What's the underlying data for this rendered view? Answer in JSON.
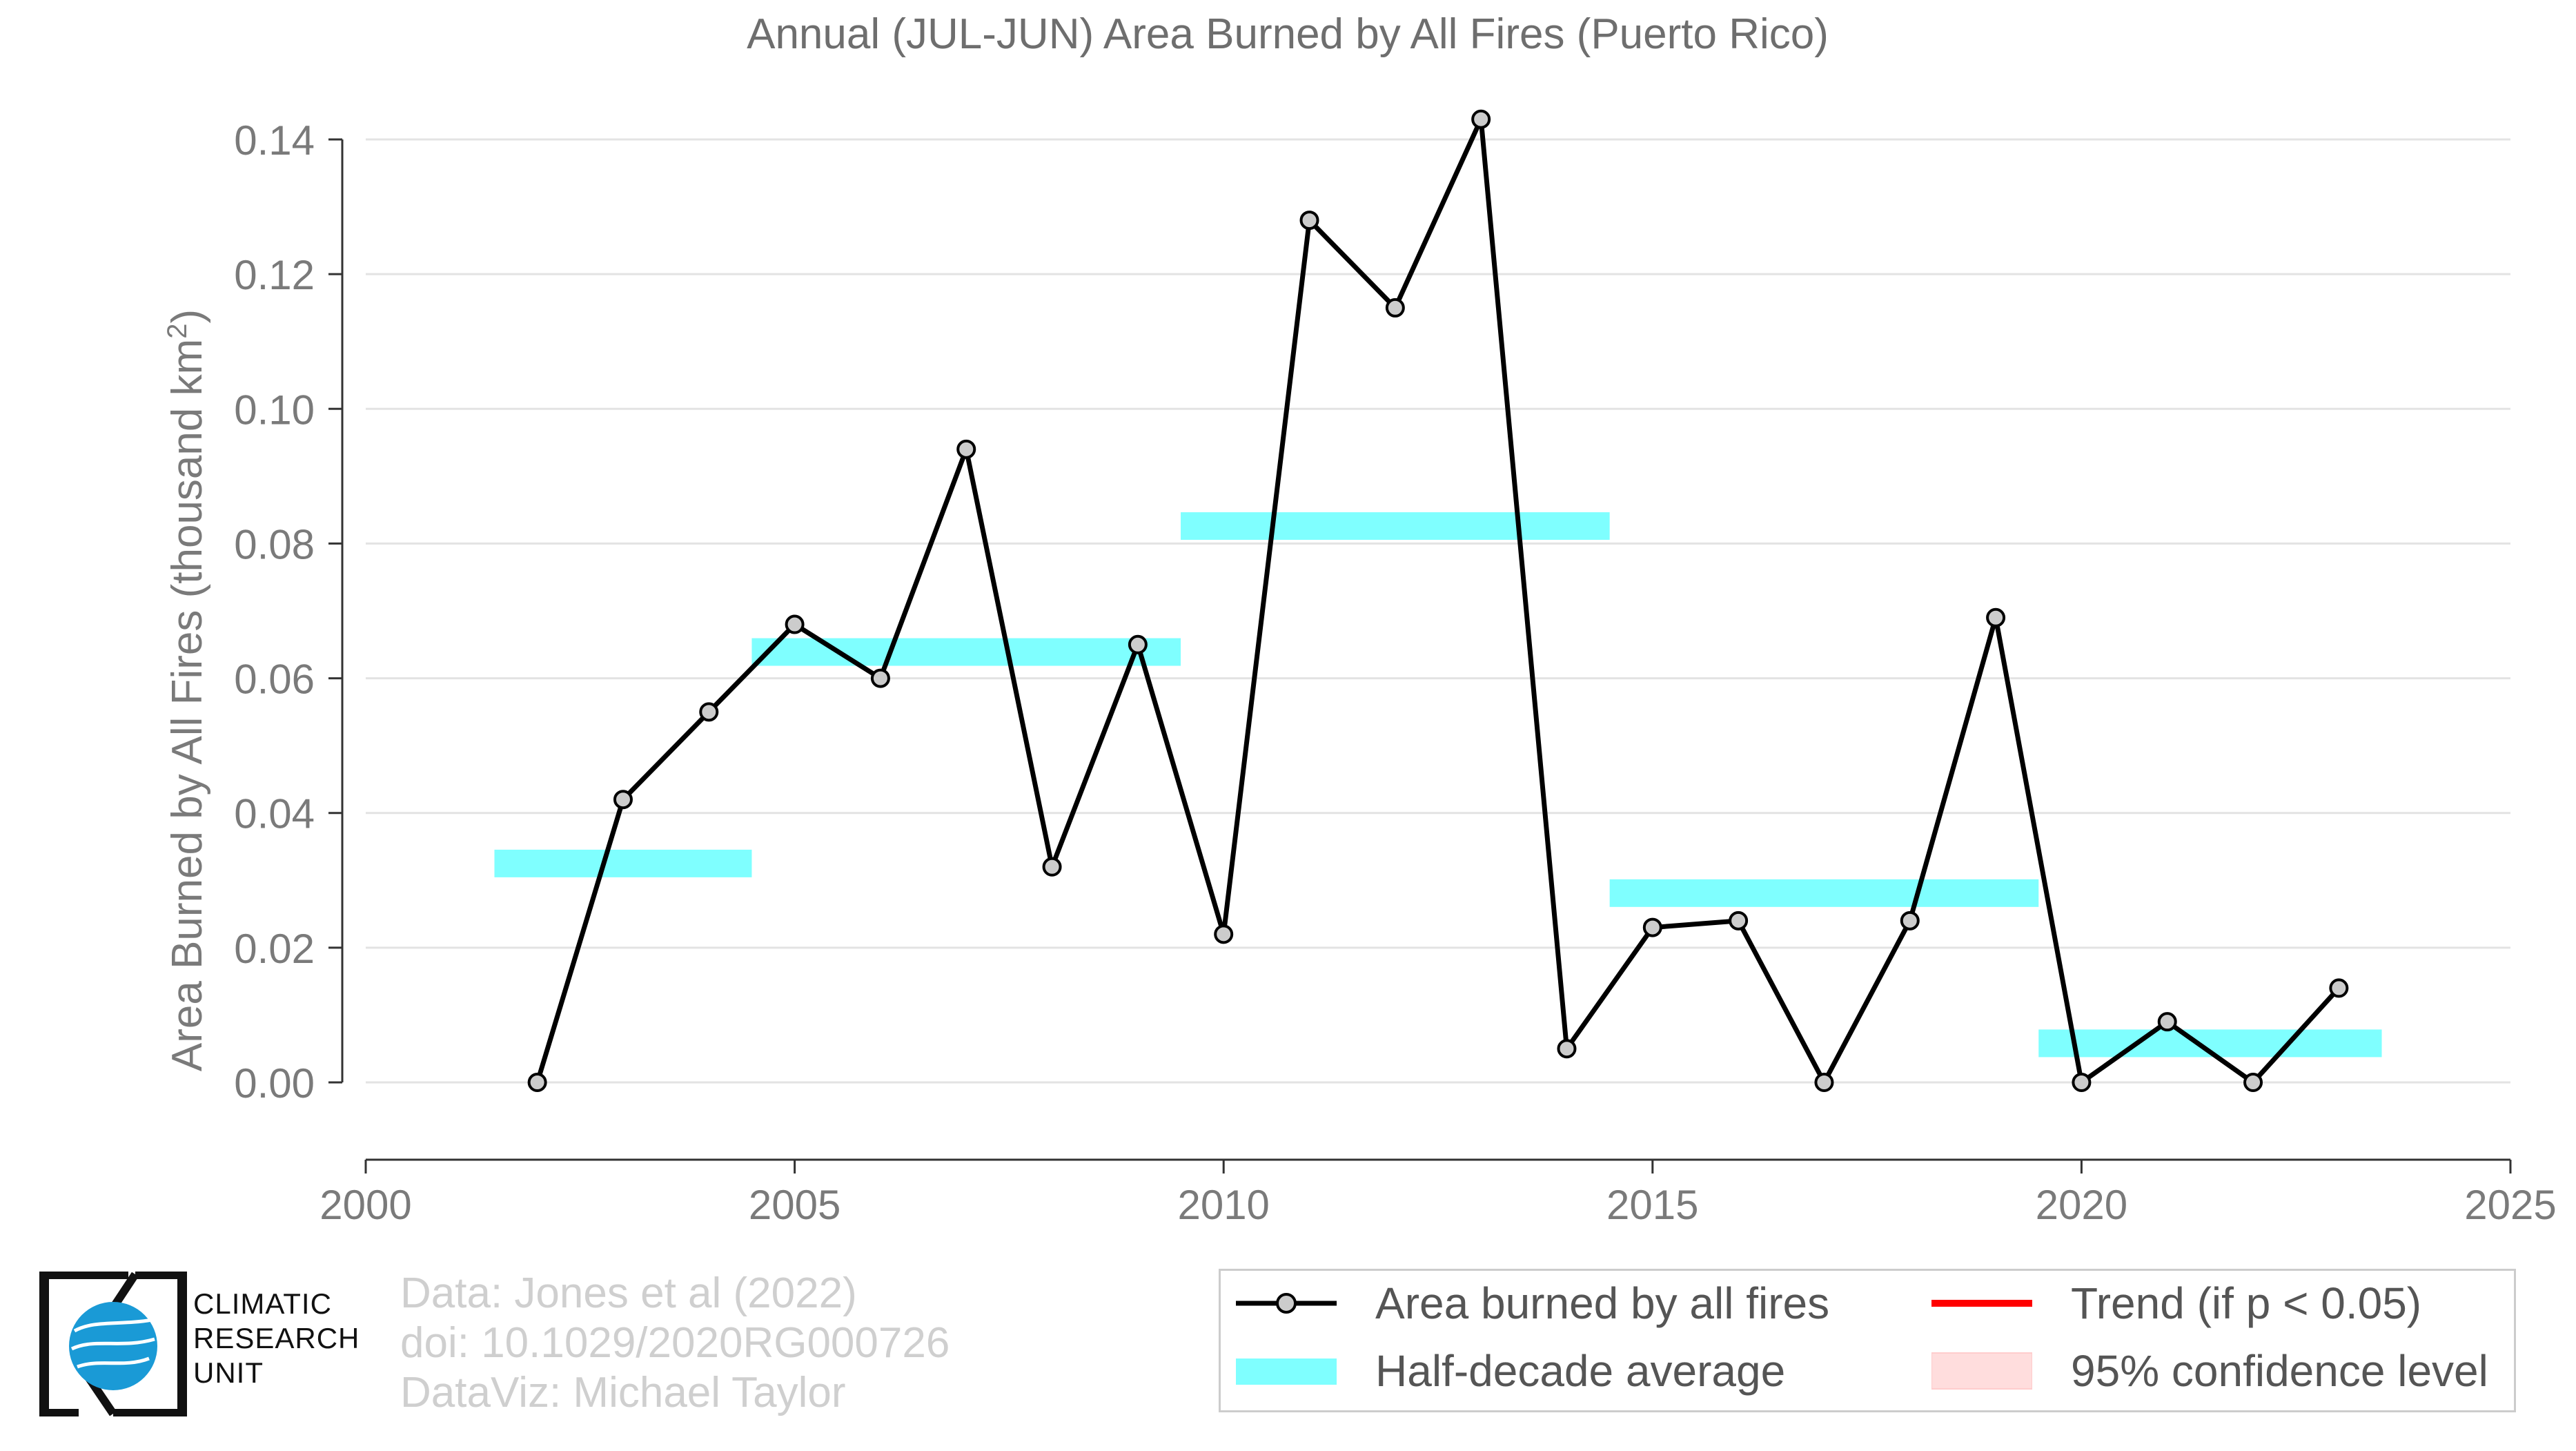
{
  "chart_data": {
    "type": "line",
    "title": "Annual (JUL-JUN) Area Burned by All Fires (Puerto Rico)",
    "xlabel": "",
    "ylabel": "Area Burned by All Fires (thousand km",
    "ylabel_sup": "2",
    "ylabel_end": ")",
    "xlim": [
      2000,
      2025
    ],
    "ylim": [
      0,
      0.14
    ],
    "x_ticks": [
      "2000",
      "2005",
      "2010",
      "2015",
      "2020",
      "2025"
    ],
    "y_ticks": [
      "0.00",
      "0.02",
      "0.04",
      "0.06",
      "0.08",
      "0.10",
      "0.12",
      "0.14"
    ],
    "grid": true,
    "legend_position": "bottom-right",
    "series": [
      {
        "name": "Area burned by all fires",
        "color": "#000000",
        "marker_fill": "#cccccc",
        "x": [
          2002,
          2003,
          2004,
          2005,
          2006,
          2007,
          2008,
          2009,
          2010,
          2011,
          2012,
          2013,
          2014,
          2015,
          2016,
          2017,
          2018,
          2019,
          2020,
          2021,
          2022,
          2023
        ],
        "y": [
          0.0,
          0.042,
          0.055,
          0.068,
          0.06,
          0.094,
          0.032,
          0.065,
          0.022,
          0.128,
          0.115,
          0.143,
          0.005,
          0.023,
          0.024,
          0.0,
          0.024,
          0.069,
          0.0,
          0.009,
          0.0,
          0.014
        ]
      }
    ],
    "half_decade_average": {
      "name": "Half-decade average",
      "color": "#7fffff",
      "segments": [
        {
          "x_start": 2001.5,
          "x_end": 2004.5,
          "value": 0.0325
        },
        {
          "x_start": 2004.5,
          "x_end": 2009.5,
          "value": 0.0639
        },
        {
          "x_start": 2009.5,
          "x_end": 2014.5,
          "value": 0.0826
        },
        {
          "x_start": 2014.5,
          "x_end": 2019.5,
          "value": 0.0281
        },
        {
          "x_start": 2019.5,
          "x_end": 2023.5,
          "value": 0.0058
        }
      ]
    },
    "legend": [
      {
        "label": "Area burned by all fires",
        "kind": "line-marker",
        "color": "#000000"
      },
      {
        "label": "Trend (if p < 0.05)",
        "kind": "line",
        "color": "#ff0000"
      },
      {
        "label": "Half-decade average",
        "kind": "band",
        "color": "#7fffff"
      },
      {
        "label": "95% confidence level",
        "kind": "band",
        "color": "#ffdddd"
      }
    ]
  },
  "footer": {
    "credit_data": "Data: Jones et al (2022)",
    "credit_doi": "doi: 10.1029/2020RG000726",
    "credit_viz": "DataViz: Michael Taylor",
    "logo_line1": "CLIMATIC",
    "logo_line2": "RESEARCH",
    "logo_line3": "UNIT",
    "logo_color": "#1a9ad6"
  }
}
